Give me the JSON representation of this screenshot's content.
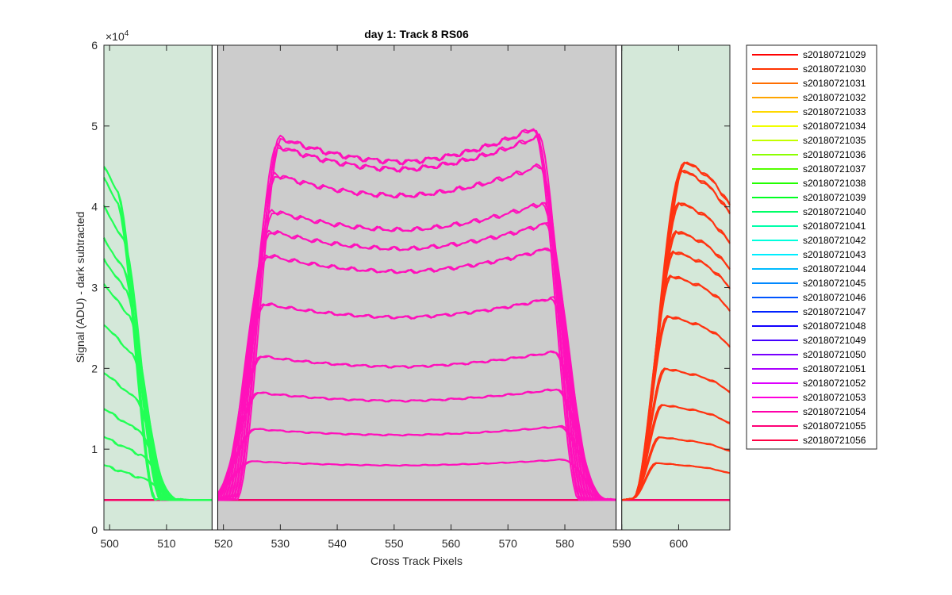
{
  "chart_data": {
    "type": "line",
    "title": "day 1: Track 8  RS06",
    "xlabel": "Cross Track Pixels",
    "ylabel": "Signal (ADU) - dark subtracted",
    "xlim": [
      499,
      609
    ],
    "ylim": [
      0,
      60000
    ],
    "x_ticks": [
      500,
      510,
      520,
      530,
      540,
      550,
      560,
      570,
      580,
      590,
      600
    ],
    "y_ticks": [
      0,
      10000,
      20000,
      30000,
      40000,
      50000,
      60000
    ],
    "y_tick_labels": [
      "0",
      "1",
      "2",
      "3",
      "4",
      "5",
      "6"
    ],
    "y_exponent_label": "×10",
    "y_exponent_power": "4",
    "grid": false,
    "legend_position": "outside-right",
    "baseline_value": 3700,
    "regions": [
      {
        "name": "left-region",
        "from": 499,
        "to": 518,
        "color": "#d4e8d9"
      },
      {
        "name": "center-region",
        "from": 519,
        "to": 589,
        "color": "#cccccc"
      },
      {
        "name": "right-region",
        "from": 590,
        "to": 609,
        "color": "#d4e8d9"
      }
    ],
    "series": [
      {
        "name": "s20180721029",
        "color": "#ff0000"
      },
      {
        "name": "s20180721030",
        "color": "#ff3300"
      },
      {
        "name": "s20180721031",
        "color": "#ff6e00"
      },
      {
        "name": "s20180721032",
        "color": "#ffa500"
      },
      {
        "name": "s20180721033",
        "color": "#ffd800"
      },
      {
        "name": "s20180721034",
        "color": "#f0ff00"
      },
      {
        "name": "s20180721035",
        "color": "#c3ff00"
      },
      {
        "name": "s20180721036",
        "color": "#8cff00"
      },
      {
        "name": "s20180721037",
        "color": "#55ff00"
      },
      {
        "name": "s20180721038",
        "color": "#22ff00"
      },
      {
        "name": "s20180721039",
        "color": "#00ff22"
      },
      {
        "name": "s20180721040",
        "color": "#00ff66"
      },
      {
        "name": "s20180721041",
        "color": "#00ffaa"
      },
      {
        "name": "s20180721042",
        "color": "#00ffdd"
      },
      {
        "name": "s20180721043",
        "color": "#00eeff"
      },
      {
        "name": "s20180721044",
        "color": "#00bbff"
      },
      {
        "name": "s20180721045",
        "color": "#0088ff"
      },
      {
        "name": "s20180721046",
        "color": "#0055ff"
      },
      {
        "name": "s20180721047",
        "color": "#0022ff"
      },
      {
        "name": "s20180721048",
        "color": "#1100ff"
      },
      {
        "name": "s20180721049",
        "color": "#4400ff"
      },
      {
        "name": "s20180721050",
        "color": "#7700ff"
      },
      {
        "name": "s20180721051",
        "color": "#aa00ff"
      },
      {
        "name": "s20180721052",
        "color": "#dd00ff"
      },
      {
        "name": "s20180721053",
        "color": "#ff00dd"
      },
      {
        "name": "s20180721054",
        "color": "#ff00aa"
      },
      {
        "name": "s20180721055",
        "color": "#ff0077"
      },
      {
        "name": "s20180721056",
        "color": "#ff0044"
      }
    ],
    "group_left": {
      "color": "#22ff55",
      "x_start": 499,
      "x_end": 518,
      "peaks": [
        45000,
        43500,
        40000,
        36000,
        33500,
        30500,
        25500,
        19500,
        15000,
        11500,
        8000
      ],
      "drop_start": [
        501,
        501,
        502,
        502,
        502.5,
        503,
        503.5,
        504,
        504.5,
        505,
        505
      ]
    },
    "group_center": {
      "color": "#ff11bb",
      "x_start": 518,
      "x_end": 590,
      "levels": [
        48500,
        47500,
        44000,
        39500,
        37000,
        34000,
        28000,
        21500,
        17000,
        12500,
        8500
      ],
      "rise_end": [
        530,
        529.5,
        529,
        528.5,
        528,
        527.5,
        527,
        526.5,
        526,
        525.5,
        525
      ],
      "fall_start": [
        574.5,
        575,
        575.5,
        576,
        576.5,
        577,
        577.5,
        578,
        578.5,
        579,
        579.5
      ]
    },
    "group_right": {
      "color": "#ff3311",
      "x_start": 590,
      "x_end": 609,
      "peaks": [
        45500,
        44500,
        40500,
        37000,
        34500,
        31500,
        26500,
        20000,
        15500,
        11500,
        8300
      ],
      "rise_end": [
        601,
        600.5,
        600,
        599.5,
        599,
        598.5,
        598,
        597.5,
        597,
        596.5,
        596
      ]
    }
  }
}
